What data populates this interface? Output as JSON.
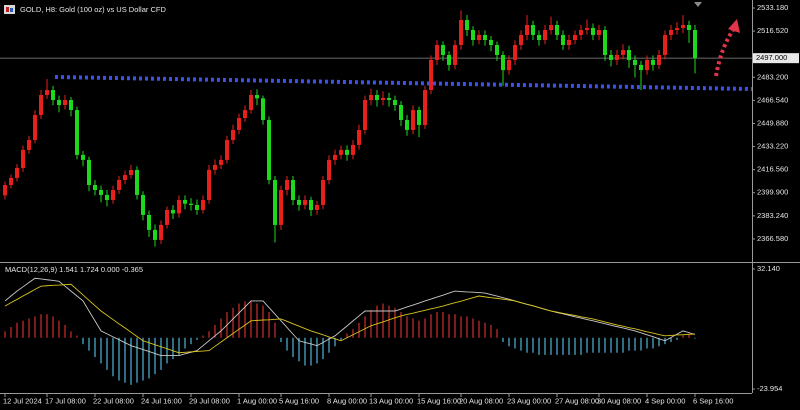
{
  "chart_data": [
    {
      "type": "candlestick",
      "title": "GOLD, H8:  Gold (100 oz) vs US Dollar CFD",
      "up_color": "#e8201c",
      "down_color": "#1ed81e",
      "ylim": [
        2349.95,
        2538.95
      ],
      "yticks": [
        {
          "value": 2533.18,
          "label": "2533.180"
        },
        {
          "value": 2516.52,
          "label": "2516.520"
        },
        {
          "value": 2483.2,
          "label": "2483.200"
        },
        {
          "value": 2466.54,
          "label": "2466.540"
        },
        {
          "value": 2449.88,
          "label": "2449.880"
        },
        {
          "value": 2433.22,
          "label": "2433.220"
        },
        {
          "value": 2416.56,
          "label": "2416.560"
        },
        {
          "value": 2399.9,
          "label": "2399.900"
        },
        {
          "value": 2383.24,
          "label": "2383.240"
        },
        {
          "value": 2366.58,
          "label": "2366.580"
        }
      ],
      "current_price": {
        "value": 2497.0,
        "label": "2497.000"
      },
      "categories": [
        "12 Jul 2024",
        null,
        null,
        null,
        null,
        null,
        null,
        "17 Jul 08:00",
        null,
        null,
        null,
        null,
        null,
        null,
        null,
        "22 Jul 08:00",
        null,
        null,
        null,
        null,
        null,
        null,
        null,
        "24 Jul 16:00",
        null,
        null,
        null,
        null,
        null,
        null,
        null,
        "29 Jul 08:00",
        null,
        null,
        null,
        null,
        null,
        null,
        null,
        "1 Aug 00:00",
        null,
        null,
        null,
        null,
        null,
        null,
        "5 Aug 16:00",
        null,
        null,
        null,
        null,
        null,
        null,
        null,
        "8 Aug 00:00",
        null,
        null,
        null,
        null,
        null,
        null,
        "13 Aug 00:00",
        null,
        null,
        null,
        null,
        null,
        null,
        null,
        "15 Aug 16:00",
        null,
        null,
        null,
        null,
        null,
        null,
        "20 Aug 08:00",
        null,
        null,
        null,
        null,
        null,
        null,
        null,
        "23 Aug 00:00",
        null,
        null,
        null,
        null,
        null,
        null,
        null,
        "27 Aug 08:00",
        null,
        null,
        null,
        null,
        null,
        null,
        "30 Aug 08:00",
        null,
        null,
        null,
        null,
        null,
        null,
        null,
        "4 Sep 00:00",
        null,
        null,
        null,
        null,
        null,
        null,
        null,
        "6 Sep 16:00"
      ],
      "open": [
        2398.0,
        2405.5,
        2410.6,
        2417.8,
        2430.8,
        2438.0,
        2456.0,
        2470.4,
        2474.0,
        2466.8,
        2463.2,
        2466.8,
        2459.6,
        2427.2,
        2423.6,
        2405.5,
        2401.9,
        2398.3,
        2394.7,
        2401.9,
        2409.1,
        2412.7,
        2416.4,
        2398.3,
        2383.9,
        2373.1,
        2365.9,
        2376.7,
        2387.5,
        2385.0,
        2394.7,
        2392.0,
        2391.1,
        2387.5,
        2394.7,
        2416.4,
        2420.0,
        2423.6,
        2438.0,
        2445.2,
        2453.8,
        2459.6,
        2470.4,
        2468.0,
        2452.4,
        2409.1,
        2376.7,
        2401.9,
        2409.1,
        2394.7,
        2391.1,
        2394.7,
        2387.5,
        2391.1,
        2409.1,
        2423.6,
        2427.2,
        2430.8,
        2427.2,
        2434.4,
        2445.2,
        2466.8,
        2470.4,
        2466.8,
        2468.3,
        2466.8,
        2463.2,
        2452.4,
        2445.2,
        2459.6,
        2448.8,
        2474.0,
        2495.7,
        2506.5,
        2499.3,
        2492.1,
        2506.5,
        2524.5,
        2517.3,
        2510.1,
        2513.7,
        2510.1,
        2506.5,
        2499.3,
        2488.4,
        2495.7,
        2506.5,
        2513.7,
        2520.9,
        2513.7,
        2510.1,
        2517.3,
        2520.9,
        2513.7,
        2506.5,
        2510.1,
        2513.7,
        2517.3,
        2518.8,
        2513.7,
        2517.3,
        2499.3,
        2495.7,
        2499.3,
        2502.9,
        2495.7,
        2492.1,
        2488.4,
        2495.7,
        2492.1,
        2499.3,
        2513.7,
        2517.3,
        2518.8,
        2520.9,
        2517.3
      ],
      "high": [
        2408.0,
        2413.0,
        2420.5,
        2434.0,
        2441.0,
        2459.5,
        2474.0,
        2482.0,
        2477.0,
        2470.0,
        2470.5,
        2469.0,
        2462.0,
        2430.0,
        2426.0,
        2409.0,
        2405.0,
        2402.0,
        2405.0,
        2412.0,
        2416.0,
        2420.0,
        2419.0,
        2401.0,
        2387.0,
        2377.0,
        2380.0,
        2390.0,
        2391.0,
        2398.0,
        2398.0,
        2396.0,
        2395.0,
        2398.0,
        2420.0,
        2424.0,
        2427.0,
        2441.0,
        2449.0,
        2457.0,
        2463.0,
        2474.0,
        2474.5,
        2470.0,
        2455.0,
        2412.0,
        2405.0,
        2412.0,
        2412.0,
        2398.0,
        2398.0,
        2397.0,
        2394.0,
        2412.0,
        2427.0,
        2431.0,
        2434.0,
        2434.0,
        2438.0,
        2449.0,
        2470.0,
        2475.0,
        2474.0,
        2473.0,
        2472.0,
        2470.0,
        2466.0,
        2456.0,
        2463.0,
        2462.0,
        2477.0,
        2499.0,
        2510.0,
        2509.0,
        2502.0,
        2510.0,
        2531.5,
        2528.0,
        2520.0,
        2517.0,
        2517.0,
        2513.0,
        2509.0,
        2502.0,
        2499.0,
        2510.0,
        2517.0,
        2528.0,
        2524.0,
        2517.0,
        2521.0,
        2527.0,
        2524.0,
        2517.0,
        2514.0,
        2517.0,
        2521.0,
        2525.0,
        2522.0,
        2521.0,
        2520.0,
        2503.0,
        2503.0,
        2507.0,
        2506.0,
        2499.0,
        2495.0,
        2499.0,
        2499.0,
        2503.0,
        2517.0,
        2521.0,
        2523.0,
        2528.0,
        2524.0,
        2521.0
      ],
      "low": [
        2395.0,
        2403.0,
        2408.0,
        2415.0,
        2428.0,
        2435.5,
        2453.0,
        2467.5,
        2463.0,
        2458.0,
        2460.0,
        2455.0,
        2424.0,
        2419.0,
        2401.0,
        2398.0,
        2393.0,
        2390.0,
        2392.0,
        2399.0,
        2406.0,
        2410.0,
        2395.0,
        2380.0,
        2368.0,
        2361.0,
        2363.0,
        2374.0,
        2381.0,
        2382.0,
        2388.0,
        2387.0,
        2384.0,
        2385.0,
        2392.0,
        2413.0,
        2417.0,
        2421.0,
        2435.0,
        2442.0,
        2451.0,
        2457.0,
        2463.0,
        2449.0,
        2406.0,
        2364.0,
        2373.0,
        2398.0,
        2391.0,
        2387.0,
        2388.0,
        2383.0,
        2384.0,
        2388.0,
        2406.0,
        2420.0,
        2424.0,
        2423.0,
        2424.0,
        2431.0,
        2442.0,
        2463.0,
        2462.0,
        2463.0,
        2462.0,
        2459.0,
        2448.0,
        2441.0,
        2442.0,
        2440.0,
        2446.0,
        2471.0,
        2492.0,
        2495.0,
        2488.0,
        2489.0,
        2503.0,
        2513.0,
        2506.0,
        2507.0,
        2506.0,
        2502.0,
        2495.0,
        2477.0,
        2485.0,
        2492.0,
        2503.0,
        2510.0,
        2510.0,
        2506.0,
        2507.0,
        2514.0,
        2510.0,
        2503.0,
        2503.0,
        2507.0,
        2510.0,
        2514.0,
        2510.0,
        2510.0,
        2495.0,
        2491.0,
        2492.0,
        2496.0,
        2490.0,
        2483.0,
        2474.0,
        2485.0,
        2488.0,
        2489.0,
        2496.0,
        2510.0,
        2514.0,
        2515.0,
        2508.0,
        2486.0
      ],
      "close": [
        2405.5,
        2410.6,
        2417.8,
        2430.8,
        2438.0,
        2456.0,
        2470.4,
        2474.0,
        2466.8,
        2463.2,
        2466.8,
        2459.6,
        2427.2,
        2423.6,
        2405.5,
        2401.9,
        2398.3,
        2394.7,
        2401.9,
        2409.1,
        2412.7,
        2416.4,
        2398.3,
        2383.9,
        2373.1,
        2365.9,
        2376.7,
        2387.5,
        2385.0,
        2394.7,
        2392.0,
        2391.1,
        2387.5,
        2394.7,
        2416.4,
        2420.0,
        2423.6,
        2438.0,
        2445.2,
        2453.8,
        2459.6,
        2470.4,
        2468.0,
        2452.4,
        2409.1,
        2376.7,
        2401.9,
        2409.1,
        2394.7,
        2391.1,
        2394.7,
        2387.5,
        2391.1,
        2409.1,
        2423.6,
        2427.2,
        2430.8,
        2427.2,
        2434.4,
        2445.2,
        2466.8,
        2470.4,
        2466.8,
        2468.3,
        2466.8,
        2463.2,
        2452.4,
        2445.2,
        2459.6,
        2448.8,
        2474.0,
        2495.7,
        2506.5,
        2499.3,
        2492.1,
        2506.5,
        2524.5,
        2517.3,
        2510.1,
        2513.7,
        2510.1,
        2506.5,
        2499.3,
        2488.4,
        2495.7,
        2506.5,
        2513.7,
        2520.9,
        2513.7,
        2510.1,
        2517.3,
        2520.9,
        2513.7,
        2506.5,
        2510.1,
        2513.7,
        2517.3,
        2518.8,
        2513.7,
        2517.3,
        2499.3,
        2495.7,
        2499.3,
        2502.9,
        2495.7,
        2492.1,
        2488.4,
        2495.7,
        2492.1,
        2499.3,
        2513.7,
        2517.3,
        2518.8,
        2520.9,
        2517.3,
        2497.0
      ]
    },
    {
      "type": "macd",
      "title": "MACD(12,26,9) 1.541 1.724 0.000 -0.365",
      "ylim": [
        -25.81,
        34.46
      ],
      "yticks": [
        {
          "value": 32.14,
          "label": "32.140"
        },
        {
          "value": -23.954,
          "label": "-23.954"
        }
      ],
      "histogram": {
        "up_color": "#d0302c",
        "down_color": "#4fb6dc",
        "values": [
          3,
          5,
          7,
          8,
          9,
          10,
          11,
          11,
          10,
          8,
          6,
          3,
          1,
          -3,
          -6,
          -9,
          -12,
          -15,
          -18,
          -20,
          -21,
          -22,
          -21,
          -20,
          -19,
          -17,
          -15,
          -12,
          -10,
          -8,
          -5,
          -3,
          -1,
          1,
          3,
          6,
          9,
          12,
          14,
          16,
          17,
          17,
          16,
          15,
          12,
          7,
          -2,
          -6,
          -9,
          -11,
          -13,
          -13,
          -12,
          -10,
          -7,
          -4,
          -1,
          2,
          4,
          7,
          10,
          13,
          15,
          16,
          15,
          14,
          12,
          10,
          9,
          8,
          9,
          11,
          12,
          12,
          11,
          11,
          10,
          10,
          9,
          8,
          7,
          6,
          4,
          -2,
          -4,
          -5,
          -6,
          -7,
          -7,
          -8,
          -8,
          -8,
          -8,
          -8,
          -8,
          -8,
          -8,
          -7,
          -7,
          -7,
          -7,
          -7,
          -7,
          -7,
          -6,
          -6,
          -6,
          -5,
          -5,
          -4,
          -3,
          -2,
          -1,
          1,
          2,
          -0.365
        ]
      },
      "macd_line": {
        "color": "#c8c8c8",
        "values": [
          17.2,
          19.5,
          21.8,
          23.8,
          25.8,
          27.8,
          27.5,
          27.1,
          26.8,
          26.4,
          24.1,
          21.8,
          19.5,
          17.2,
          12.5,
          7.9,
          3.2,
          1.8,
          0.4,
          -0.9,
          -2.3,
          -3.7,
          -4.6,
          -5.5,
          -6.4,
          -7.4,
          -8.3,
          -8.3,
          -8.3,
          -8.3,
          -7.5,
          -6.8,
          -6.0,
          -3.7,
          -1.4,
          0.9,
          3.2,
          6.0,
          8.8,
          11.6,
          14.4,
          17.2,
          17.2,
          17.2,
          14.1,
          11.0,
          7.9,
          4.8,
          1.7,
          -1.4,
          -2.2,
          -2.9,
          -3.7,
          -2.2,
          -0.6,
          0.9,
          3.2,
          5.5,
          7.9,
          10.2,
          12.5,
          12.5,
          12.5,
          12.5,
          12.5,
          12.5,
          13.4,
          14.4,
          15.3,
          16.2,
          17.2,
          18.1,
          19.0,
          19.9,
          20.9,
          21.8,
          21.6,
          21.4,
          21.3,
          21.1,
          20.9,
          20.2,
          19.5,
          18.7,
          18.0,
          17.2,
          16.4,
          15.6,
          14.9,
          14.1,
          13.3,
          12.5,
          11.8,
          11.2,
          10.5,
          9.8,
          9.2,
          8.5,
          7.9,
          7.2,
          6.6,
          5.9,
          5.2,
          4.6,
          3.9,
          3.2,
          2.3,
          1.4,
          0.5,
          -0.5,
          -1.4,
          0.1,
          1.7,
          3.2,
          2.4,
          1.541
        ]
      },
      "signal_line": {
        "color": "#d8c41c",
        "values": [
          14.8,
          16.4,
          17.9,
          19.5,
          21.0,
          22.6,
          24.1,
          24.3,
          24.5,
          24.6,
          24.8,
          25.0,
          22.5,
          20.0,
          17.5,
          15.0,
          12.5,
          10.5,
          8.5,
          6.5,
          4.6,
          2.6,
          0.6,
          -1.4,
          -2.3,
          -3.3,
          -4.2,
          -5.1,
          -6.1,
          -7.0,
          -6.8,
          -6.6,
          -6.4,
          -6.2,
          -6.0,
          -4.0,
          -2.0,
          0.0,
          2.0,
          4.0,
          5.9,
          7.9,
          8.1,
          8.3,
          8.4,
          8.6,
          8.8,
          7.7,
          6.5,
          5.4,
          4.3,
          3.2,
          2.3,
          1.4,
          0.4,
          -0.5,
          -1.4,
          0.0,
          1.4,
          2.8,
          4.2,
          5.6,
          6.5,
          7.4,
          8.4,
          9.3,
          10.2,
          10.9,
          11.5,
          12.2,
          12.8,
          13.5,
          14.1,
          14.8,
          15.6,
          16.4,
          17.1,
          17.9,
          18.7,
          19.5,
          19.1,
          18.7,
          18.4,
          18.0,
          17.6,
          17.2,
          16.4,
          15.6,
          14.9,
          14.1,
          13.3,
          12.5,
          12.0,
          11.4,
          10.9,
          10.4,
          9.8,
          9.3,
          8.8,
          8.1,
          7.4,
          6.7,
          6.0,
          5.4,
          4.7,
          4.2,
          3.5,
          2.8,
          2.2,
          1.5,
          0.9,
          1.1,
          1.3,
          1.4,
          1.6,
          1.724
        ]
      }
    }
  ]
}
